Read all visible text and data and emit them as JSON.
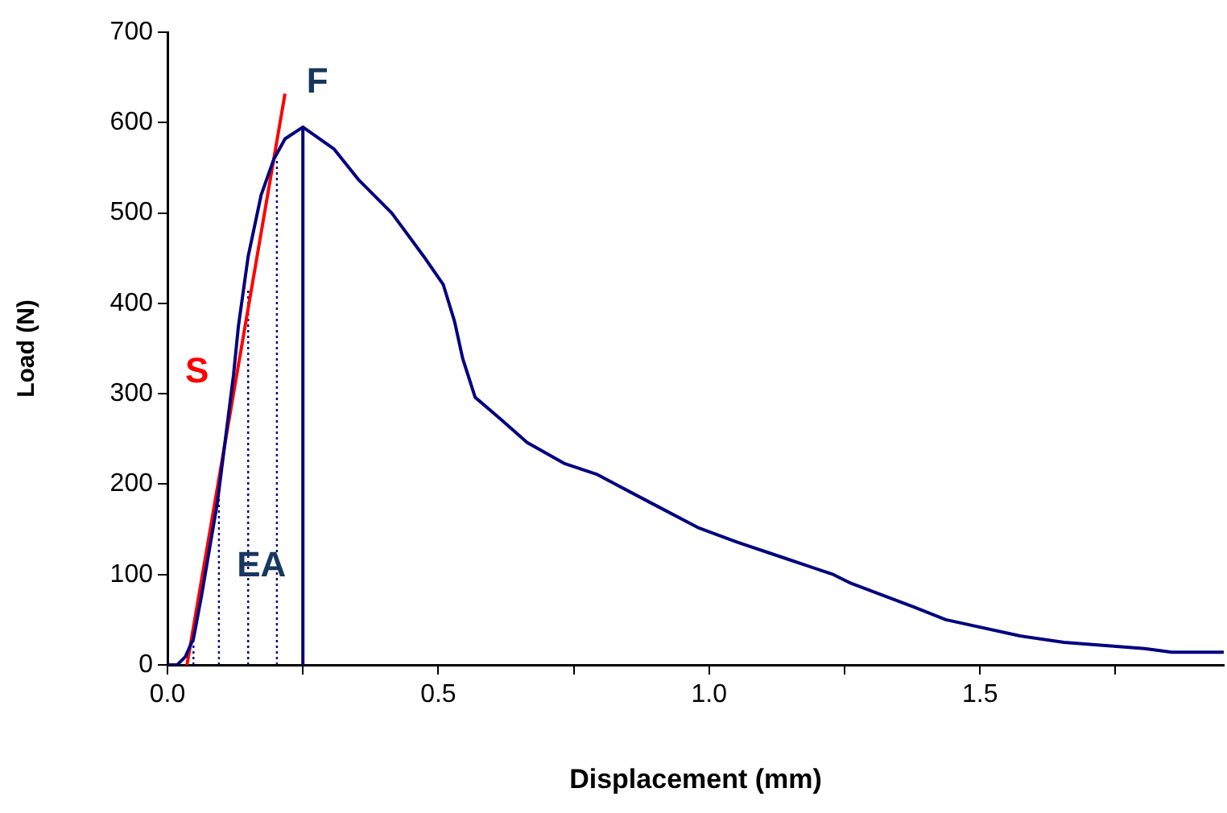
{
  "chart_data": {
    "type": "line",
    "xlabel": "Displacement (mm)",
    "ylabel": "Load (N)",
    "xlim": [
      0,
      1.95
    ],
    "xticks": [
      {
        "value": 0,
        "label": "0.0"
      },
      {
        "value": 0.25,
        "label": null
      },
      0.5,
      {
        "value": 0.75,
        "label": null
      },
      {
        "value": 1,
        "label": "1.0"
      },
      {
        "value": 1.25,
        "label": null
      },
      1.5,
      {
        "value": 1.75,
        "label": null
      }
    ],
    "ylim": [
      0,
      700
    ],
    "yticks": [
      0,
      100,
      200,
      300,
      400,
      500,
      600,
      700
    ],
    "grid": false,
    "legend": false,
    "marker": "none",
    "annotations": [
      "F",
      "S",
      "EA"
    ],
    "series": [
      {
        "color": "#000080",
        "line_style": "solid",
        "x": [
          0,
          0.018,
          0.033,
          0.048,
          0.063,
          0.092,
          0.122,
          0.131,
          0.149,
          0.173,
          0.196,
          0.217,
          0.25,
          0.307,
          0.354,
          0.414,
          0.473,
          0.509,
          0.53,
          0.545,
          0.568,
          0.613,
          0.664,
          0.732,
          0.792,
          0.89,
          0.979,
          1.051,
          1.14,
          1.229,
          1.259,
          1.378,
          1.437,
          1.574,
          1.655,
          1.804,
          1.854,
          1.95
        ],
        "values": [
          0,
          0,
          9,
          29,
          77,
          179,
          321,
          375,
          452,
          520,
          559,
          582,
          595,
          571,
          536,
          500,
          452,
          421,
          380,
          339,
          296,
          273,
          246,
          223,
          211,
          180,
          152,
          136,
          118,
          100,
          91,
          64,
          50,
          32,
          25,
          18,
          14,
          14
        ]
      },
      {
        "color": "#ff0000",
        "line_style": "solid",
        "x": [
          0.036,
          0.217
        ],
        "values": [
          0,
          632
        ]
      },
      {
        "color": "#000080",
        "line_style": "solid",
        "x": [
          0.25,
          0.25
        ],
        "values": [
          0,
          595
        ]
      },
      {
        "color": "#000080",
        "line_style": "dotted",
        "x": [
          0.048,
          0.048
        ],
        "values": [
          0,
          29
        ]
      },
      {
        "color": "#000080",
        "line_style": "dotted",
        "x": [
          0.095,
          0.095
        ],
        "values": [
          0,
          184
        ]
      },
      {
        "color": "#000080",
        "line_style": "dotted",
        "x": [
          0.149,
          0.149
        ],
        "values": [
          0,
          416
        ]
      },
      {
        "color": "#000080",
        "line_style": "dotted",
        "x": [
          0.202,
          0.202
        ],
        "values": [
          0,
          559
        ]
      }
    ]
  }
}
